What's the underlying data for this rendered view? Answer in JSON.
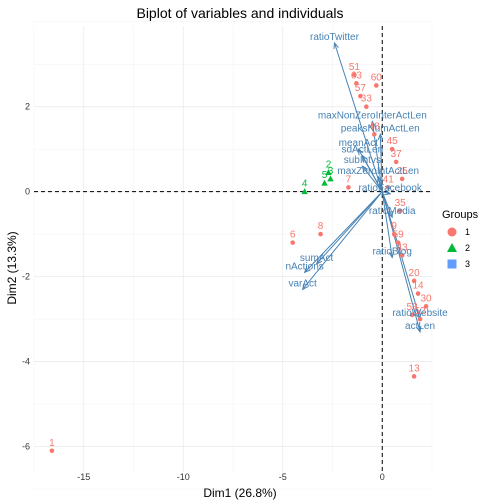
{
  "chart_data": {
    "type": "scatter",
    "title": "Biplot of variables and individuals",
    "xlabel": "Dim1 (26.8%)",
    "ylabel": "Dim2 (13.3%)",
    "xlim": [
      -17.5,
      2.5
    ],
    "ylim": [
      -6.6,
      3.9
    ],
    "x_ticks": [
      -15,
      -10,
      -5,
      0
    ],
    "x_tick_labels": [
      "-15",
      "-10",
      "-5",
      "0"
    ],
    "y_ticks": [
      -6,
      -4,
      -2,
      0,
      2
    ],
    "y_tick_labels": [
      "-6",
      "-4",
      "-2",
      "0",
      "2"
    ],
    "grid": true,
    "legend": {
      "title": "Groups",
      "position": "right",
      "entries": [
        {
          "label": "1",
          "color": "#F8766D",
          "shape": "circle"
        },
        {
          "label": "2",
          "color": "#00BA38",
          "shape": "triangle"
        },
        {
          "label": "3",
          "color": "#619CFF",
          "shape": "square"
        }
      ]
    },
    "individuals": [
      {
        "label": "1",
        "group": "1",
        "x": -16.6,
        "y": -6.1
      },
      {
        "label": "13",
        "group": "1",
        "x": 1.6,
        "y": -4.35
      },
      {
        "label": "51",
        "group": "1",
        "x": -1.4,
        "y": 2.75
      },
      {
        "label": "63",
        "group": "1",
        "x": -1.3,
        "y": 2.55
      },
      {
        "label": "60",
        "group": "1",
        "x": -0.3,
        "y": 2.5
      },
      {
        "label": "57",
        "group": "1",
        "x": -1.1,
        "y": 2.25
      },
      {
        "label": "33",
        "group": "1",
        "x": -0.8,
        "y": 2.0
      },
      {
        "label": "48",
        "group": "1",
        "x": -0.4,
        "y": 1.35
      },
      {
        "label": "45",
        "group": "1",
        "x": 0.5,
        "y": 1.0
      },
      {
        "label": "37",
        "group": "1",
        "x": 0.7,
        "y": 0.7
      },
      {
        "label": "25",
        "group": "1",
        "x": 1.0,
        "y": 0.3
      },
      {
        "label": "41",
        "group": "1",
        "x": 0.3,
        "y": 0.1
      },
      {
        "label": "35",
        "group": "1",
        "x": 0.9,
        "y": -0.45
      },
      {
        "label": "9",
        "group": "1",
        "x": 0.6,
        "y": -1.0
      },
      {
        "label": "59",
        "group": "1",
        "x": 0.8,
        "y": -1.2
      },
      {
        "label": "43",
        "group": "1",
        "x": 1.0,
        "y": -1.5
      },
      {
        "label": "20",
        "group": "1",
        "x": 1.6,
        "y": -2.1
      },
      {
        "label": "14",
        "group": "1",
        "x": 1.8,
        "y": -2.4
      },
      {
        "label": "30",
        "group": "1",
        "x": 2.2,
        "y": -2.7
      },
      {
        "label": "58",
        "group": "1",
        "x": 1.5,
        "y": -2.9
      },
      {
        "label": "52",
        "group": "1",
        "x": 1.9,
        "y": -3.0
      },
      {
        "label": "7",
        "group": "1",
        "x": -1.7,
        "y": 0.1
      },
      {
        "label": "8",
        "group": "1",
        "x": -3.1,
        "y": -1.0
      },
      {
        "label": "6",
        "group": "1",
        "x": -4.5,
        "y": -1.2
      },
      {
        "label": "2",
        "group": "2",
        "x": -2.7,
        "y": 0.45
      },
      {
        "label": "3",
        "group": "2",
        "x": -2.6,
        "y": 0.3
      },
      {
        "label": "4",
        "group": "2",
        "x": -3.9,
        "y": 0.0
      },
      {
        "label": "5",
        "group": "2",
        "x": -2.9,
        "y": 0.2
      }
    ],
    "variables": [
      {
        "label": "ratioTwitter",
        "x": -2.4,
        "y": 3.5
      },
      {
        "label": "maxNonZeroInterActLen",
        "x": -0.5,
        "y": 1.65
      },
      {
        "label": "peaksNumActLen",
        "x": -0.1,
        "y": 1.35
      },
      {
        "label": "meanAct",
        "x": -1.2,
        "y": 1.0
      },
      {
        "label": "sdActLen",
        "x": -1.0,
        "y": 0.85
      },
      {
        "label": "subIntvs",
        "x": -1.0,
        "y": 0.6
      },
      {
        "label": "maxZeroIntActLen",
        "x": -0.2,
        "y": 0.35
      },
      {
        "label": "ratioFacebook",
        "x": 0.4,
        "y": -0.05
      },
      {
        "label": "ratioMedia",
        "x": 0.5,
        "y": -0.6
      },
      {
        "label": "ratioBlog",
        "x": 0.5,
        "y": -1.55
      },
      {
        "label": "sumAct",
        "x": -3.3,
        "y": -1.7
      },
      {
        "label": "nActions",
        "x": -3.9,
        "y": -1.9
      },
      {
        "label": "varAct",
        "x": -4.0,
        "y": -2.3
      },
      {
        "label": "ratioWebsite",
        "x": 1.9,
        "y": -3.0
      },
      {
        "label": "actLen",
        "x": 1.9,
        "y": -3.3
      }
    ]
  }
}
